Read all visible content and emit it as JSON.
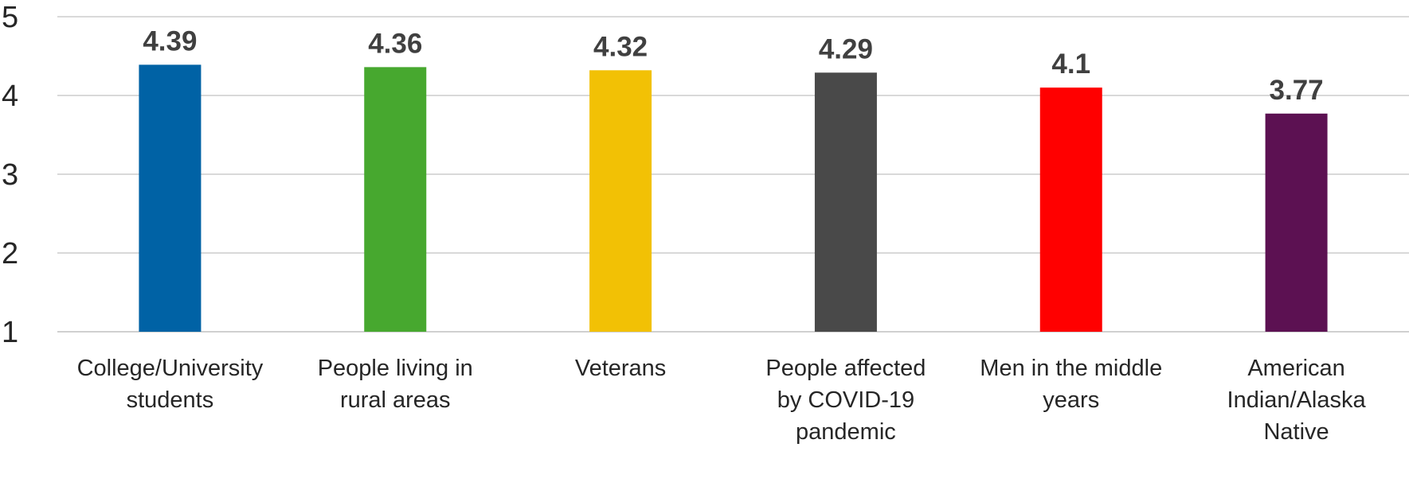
{
  "chart_data": {
    "type": "bar",
    "title": "",
    "xlabel": "",
    "ylabel": "",
    "categories": [
      "College/University students",
      "People living in rural areas",
      "Veterans",
      "People affected by COVID-19 pandemic",
      "Men in the middle years",
      "American Indian/Alaska Native"
    ],
    "category_label_lines": [
      [
        "College/University",
        "students"
      ],
      [
        "People living in",
        "rural areas"
      ],
      [
        "Veterans"
      ],
      [
        "People affected",
        "by COVID-19",
        "pandemic"
      ],
      [
        "Men in the middle",
        "years"
      ],
      [
        "American",
        "Indian/Alaska",
        "Native"
      ]
    ],
    "values": [
      4.39,
      4.36,
      4.32,
      4.29,
      4.1,
      3.77
    ],
    "data_labels": [
      "4.39",
      "4.36",
      "4.32",
      "4.29",
      "4.1",
      "3.77"
    ],
    "bar_colors": [
      "#0062A5",
      "#47A82F",
      "#F2C105",
      "#494949",
      "#FF0000",
      "#5C1152"
    ],
    "ylim": [
      1,
      5
    ],
    "yticks": [
      1,
      2,
      3,
      4,
      5
    ],
    "ytick_labels": [
      "1",
      "2",
      "3",
      "4",
      "5"
    ],
    "grid": true,
    "legend": "none"
  }
}
